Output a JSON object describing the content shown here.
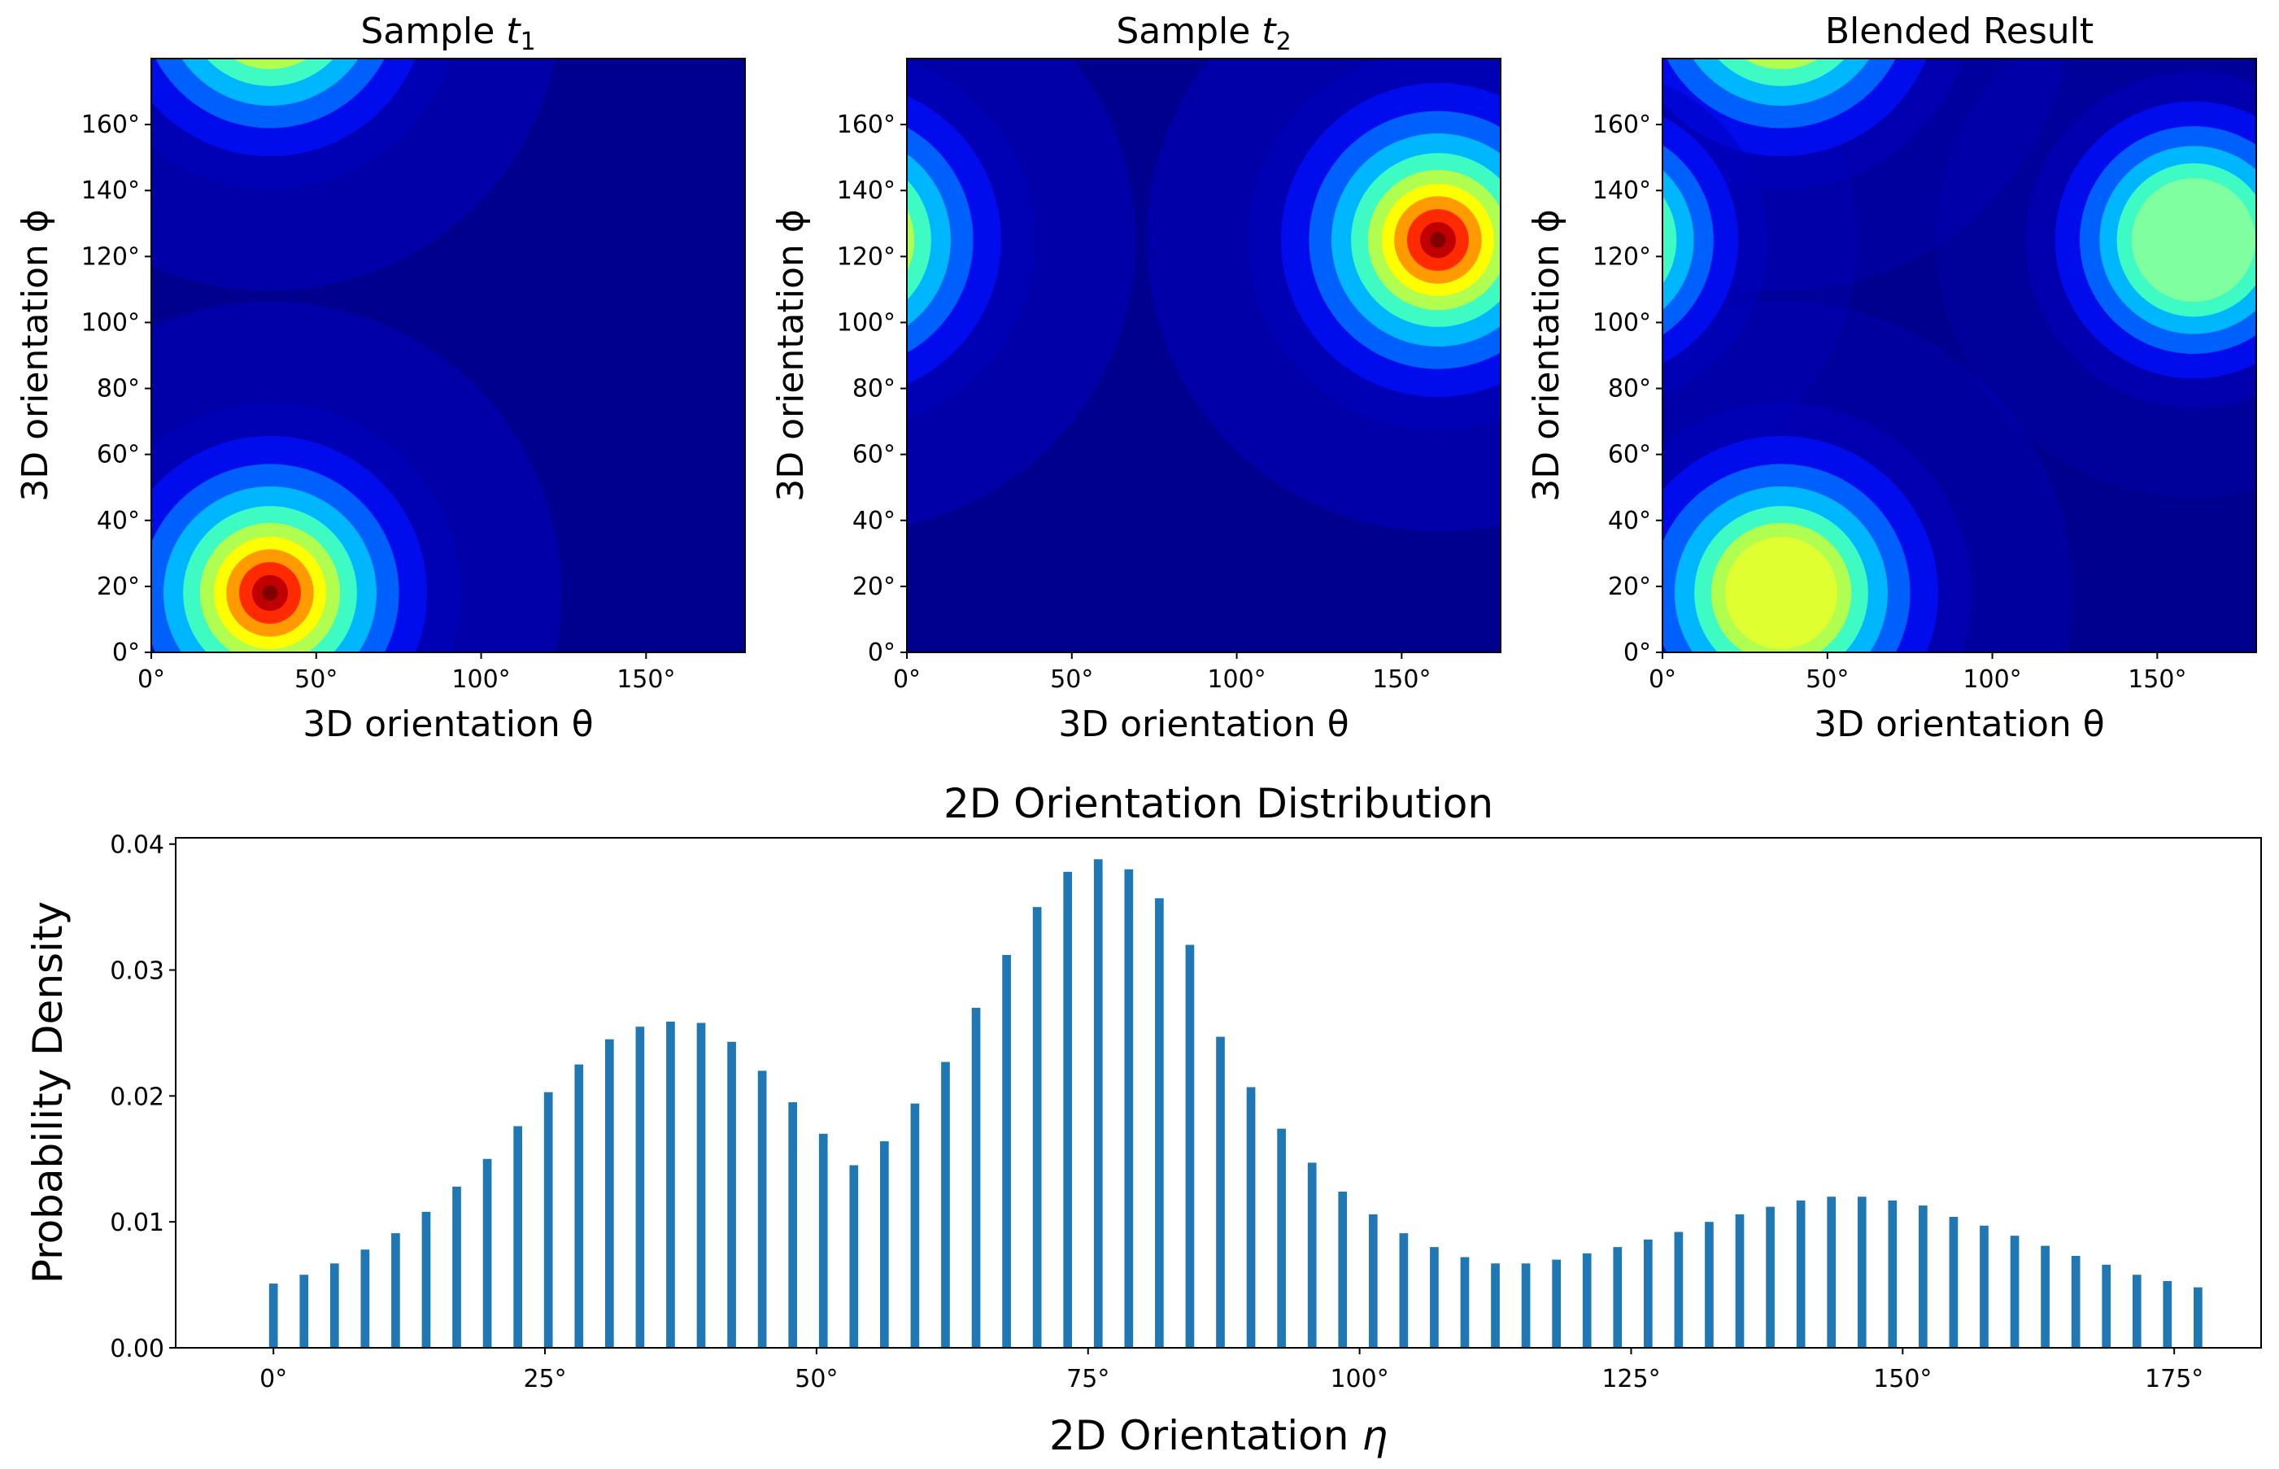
{
  "colors": {
    "bar": "#1f77b4",
    "frame": "#000000",
    "background": "#ffffff",
    "colormap": "jet"
  },
  "chart_data": [
    {
      "type": "heatmap",
      "title_text": "Sample ",
      "title_var": "t",
      "title_sub": "1",
      "xlabel": "3D orientation θ",
      "ylabel": "3D orientation ϕ",
      "xlim": [
        0,
        180
      ],
      "ylim": [
        0,
        180
      ],
      "xticks": [
        "0°",
        "50°",
        "100°",
        "150°"
      ],
      "yticks": [
        "0°",
        "20°",
        "40°",
        "60°",
        "80°",
        "100°",
        "120°",
        "140°",
        "160°"
      ],
      "xtick_values": [
        0,
        50,
        100,
        150
      ],
      "ytick_values": [
        0,
        20,
        40,
        60,
        80,
        100,
        120,
        140,
        160
      ],
      "peaks": [
        {
          "theta": 36,
          "phi": 18,
          "intensity": 1.0,
          "spread": 17
        },
        {
          "theta": 36,
          "phi": 198,
          "intensity": 1.0,
          "spread": 17
        }
      ]
    },
    {
      "type": "heatmap",
      "title_text": "Sample ",
      "title_var": "t",
      "title_sub": "2",
      "xlabel": "3D orientation θ",
      "ylabel": "3D orientation ϕ",
      "xlim": [
        0,
        180
      ],
      "ylim": [
        0,
        180
      ],
      "xticks": [
        "0°",
        "50°",
        "100°",
        "150°"
      ],
      "yticks": [
        "0°",
        "20°",
        "40°",
        "60°",
        "80°",
        "100°",
        "120°",
        "140°",
        "160°"
      ],
      "xtick_values": [
        0,
        50,
        100,
        150
      ],
      "ytick_values": [
        0,
        20,
        40,
        60,
        80,
        100,
        120,
        140,
        160
      ],
      "peaks": [
        {
          "theta": 161,
          "phi": 125,
          "intensity": 1.0,
          "spread": 17
        },
        {
          "theta": -19,
          "phi": 125,
          "intensity": 1.0,
          "spread": 17
        }
      ]
    },
    {
      "type": "heatmap",
      "title_text": "Blended Result",
      "title_var": "",
      "title_sub": "",
      "xlabel": "3D orientation θ",
      "ylabel": "3D orientation ϕ",
      "xlim": [
        0,
        180
      ],
      "ylim": [
        0,
        180
      ],
      "xticks": [
        "0°",
        "50°",
        "100°",
        "150°"
      ],
      "yticks": [
        "0°",
        "20°",
        "40°",
        "60°",
        "80°",
        "100°",
        "120°",
        "140°",
        "160°"
      ],
      "xtick_values": [
        0,
        50,
        100,
        150
      ],
      "ytick_values": [
        0,
        20,
        40,
        60,
        80,
        100,
        120,
        140,
        160
      ],
      "peaks": [
        {
          "theta": 36,
          "phi": 18,
          "intensity": 0.6,
          "spread": 17
        },
        {
          "theta": 36,
          "phi": 198,
          "intensity": 0.6,
          "spread": 17
        },
        {
          "theta": 161,
          "phi": 125,
          "intensity": 0.5,
          "spread": 15
        },
        {
          "theta": -19,
          "phi": 125,
          "intensity": 0.5,
          "spread": 15
        }
      ]
    },
    {
      "type": "bar",
      "title": "2D Orientation Distribution",
      "xlabel_text": "2D Orientation ",
      "xlabel_var": "η",
      "ylabel": "Probability Density",
      "xlim": [
        -9,
        183
      ],
      "ylim": [
        0,
        0.0405
      ],
      "xticks": [
        "0°",
        "25°",
        "50°",
        "75°",
        "100°",
        "125°",
        "150°",
        "175°"
      ],
      "xtick_values": [
        0,
        25,
        50,
        75,
        100,
        125,
        150,
        175
      ],
      "yticks": [
        "0.00",
        "0.01",
        "0.02",
        "0.03",
        "0.04"
      ],
      "ytick_values": [
        0,
        0.01,
        0.02,
        0.03,
        0.04
      ],
      "bar_width": 0.8,
      "x": [
        0,
        2.8125,
        5.625,
        8.4375,
        11.25,
        14.0625,
        16.875,
        19.6875,
        22.5,
        25.3125,
        28.125,
        30.9375,
        33.75,
        36.5625,
        39.375,
        42.1875,
        45,
        47.8125,
        50.625,
        53.4375,
        56.25,
        59.0625,
        61.875,
        64.6875,
        67.5,
        70.3125,
        73.125,
        75.9375,
        78.75,
        81.5625,
        84.375,
        87.1875,
        90,
        92.8125,
        95.625,
        98.4375,
        101.25,
        104.0625,
        106.875,
        109.6875,
        112.5,
        115.3125,
        118.125,
        120.9375,
        123.75,
        126.5625,
        129.375,
        132.1875,
        135,
        137.8125,
        140.625,
        143.4375,
        146.25,
        149.0625,
        151.875,
        154.6875,
        157.5,
        160.3125,
        163.125,
        165.9375,
        168.75,
        171.5625,
        174.375,
        177.1875
      ],
      "values": [
        0.0051,
        0.0058,
        0.0067,
        0.0078,
        0.0091,
        0.0108,
        0.0128,
        0.015,
        0.0176,
        0.0203,
        0.0225,
        0.0245,
        0.0255,
        0.0259,
        0.0258,
        0.0243,
        0.022,
        0.0195,
        0.017,
        0.0145,
        0.0164,
        0.0194,
        0.0227,
        0.027,
        0.0312,
        0.035,
        0.0378,
        0.0388,
        0.038,
        0.0357,
        0.032,
        0.0247,
        0.0207,
        0.0174,
        0.0147,
        0.0124,
        0.0106,
        0.0091,
        0.008,
        0.0072,
        0.0067,
        0.0067,
        0.007,
        0.0075,
        0.008,
        0.0086,
        0.0092,
        0.01,
        0.0106,
        0.0112,
        0.0117,
        0.012,
        0.012,
        0.0117,
        0.0113,
        0.0104,
        0.0097,
        0.0089,
        0.0081,
        0.0073,
        0.0066,
        0.0058,
        0.0053,
        0.0048
      ]
    }
  ]
}
